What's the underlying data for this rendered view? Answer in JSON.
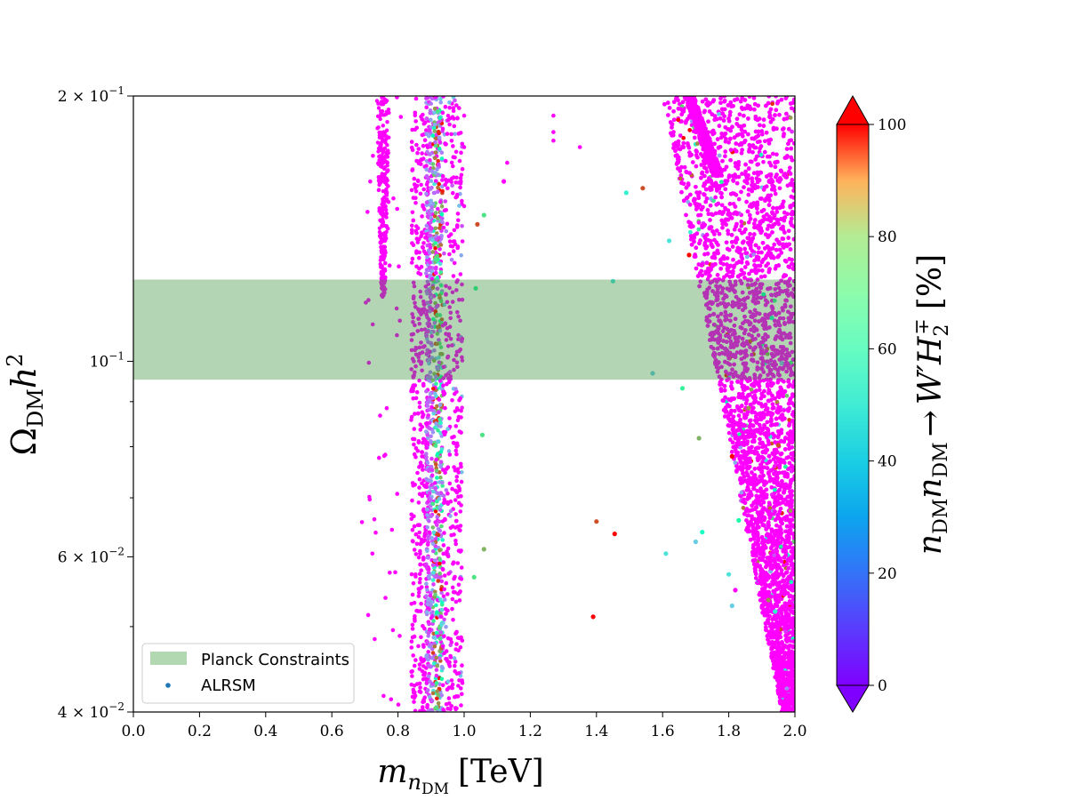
{
  "chart_data": {
    "type": "scatter",
    "xlabel": "m_{n_DM} [TeV]",
    "xlabel_parts": {
      "var": "m",
      "sub1": "n",
      "sub2": "DM",
      "unit": "[TeV]"
    },
    "ylabel": "Ω_DM h^2",
    "ylabel_parts": {
      "var": "Ω",
      "sub": "DM",
      "var2": "h",
      "sup": "2"
    },
    "xlim": [
      0.0,
      2.0
    ],
    "ylim": [
      0.04,
      0.2
    ],
    "yscale": "log",
    "xticks": [
      0.0,
      0.2,
      0.4,
      0.6,
      0.8,
      1.0,
      1.2,
      1.4,
      1.6,
      1.8,
      2.0
    ],
    "xtick_labels": [
      "0.0",
      "0.2",
      "0.4",
      "0.6",
      "0.8",
      "1.0",
      "1.2",
      "1.4",
      "1.6",
      "1.8",
      "2.0"
    ],
    "yticks": [
      {
        "value": 0.2,
        "mant": "2 × 10",
        "exp": "−1"
      },
      {
        "value": 0.1,
        "mant": "10",
        "exp": "−1"
      },
      {
        "value": 0.06,
        "mant": "6 × 10",
        "exp": "−2"
      },
      {
        "value": 0.04,
        "mant": "4 × 10",
        "exp": "−2"
      }
    ],
    "yminor_ticks": [
      0.05,
      0.07,
      0.08,
      0.09
    ],
    "band": {
      "name": "Planck Constraints",
      "ymin": 0.0953,
      "ymax": 0.1238,
      "color": "#b2d8b2"
    },
    "scatter_series_name": "ALRSM",
    "legend_position": "lower-left",
    "grid": false,
    "colorbar": {
      "label": "n_DM n_DM → W′ H_2^∓ [%]",
      "label_parts": {
        "a": "n",
        "asub": "DM",
        "b": "n",
        "bsub": "DM",
        "arrow": "→",
        "w": "W′",
        "h": "H",
        "hsub": "2",
        "hsup": "∓",
        "unit": "[%]"
      },
      "min": 0,
      "max": 100,
      "ticks": [
        0,
        20,
        40,
        60,
        80,
        100
      ],
      "tick_labels": [
        "0",
        "20",
        "40",
        "60",
        "80",
        "100"
      ],
      "colormap": "rainbow",
      "extend": "both"
    },
    "isolated_points": [
      {
        "x": 1.04,
        "y": 0.143,
        "c": 90
      },
      {
        "x": 1.035,
        "y": 0.121,
        "c": 60
      },
      {
        "x": 1.06,
        "y": 0.1465,
        "c": 65
      },
      {
        "x": 1.055,
        "y": 0.0825,
        "c": 65
      },
      {
        "x": 1.06,
        "y": 0.0612,
        "c": 75
      },
      {
        "x": 1.03,
        "y": 0.0569,
        "c": 65
      },
      {
        "x": 1.12,
        "y": 0.16,
        "c": 0
      },
      {
        "x": 1.39,
        "y": 0.0513,
        "c": 100
      },
      {
        "x": 1.4,
        "y": 0.0658,
        "c": 90
      },
      {
        "x": 1.455,
        "y": 0.0637,
        "c": 100
      },
      {
        "x": 1.45,
        "y": 0.1233,
        "c": 35
      },
      {
        "x": 1.49,
        "y": 0.1553,
        "c": 40
      },
      {
        "x": 1.54,
        "y": 0.1572,
        "c": 90
      },
      {
        "x": 1.57,
        "y": 0.0969,
        "c": 30
      },
      {
        "x": 1.61,
        "y": 0.0605,
        "c": 35
      },
      {
        "x": 1.62,
        "y": 0.137,
        "c": 35
      },
      {
        "x": 1.66,
        "y": 0.0932,
        "c": 60
      },
      {
        "x": 1.68,
        "y": 0.132,
        "c": 100
      },
      {
        "x": 1.7,
        "y": 0.0624,
        "c": 30
      },
      {
        "x": 1.71,
        "y": 0.0818,
        "c": 75
      },
      {
        "x": 1.72,
        "y": 0.064,
        "c": 45
      },
      {
        "x": 1.81,
        "y": 0.078,
        "c": 100
      },
      {
        "x": 1.83,
        "y": 0.066,
        "c": 55
      },
      {
        "x": 1.8,
        "y": 0.0573,
        "c": 35
      },
      {
        "x": 1.81,
        "y": 0.0528,
        "c": 30
      },
      {
        "x": 1.82,
        "y": 0.055,
        "c": 0
      },
      {
        "x": 1.86,
        "y": 0.0885,
        "c": 80
      },
      {
        "x": 1.93,
        "y": 0.112,
        "c": 45
      },
      {
        "x": 1.95,
        "y": 0.0803,
        "c": 90
      },
      {
        "x": 1.92,
        "y": 0.0536,
        "c": 80
      },
      {
        "x": 1.94,
        "y": 0.052,
        "c": 40
      },
      {
        "x": 1.96,
        "y": 0.0995,
        "c": 25
      }
    ]
  }
}
